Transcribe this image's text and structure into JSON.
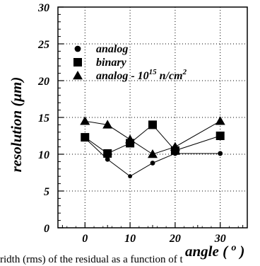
{
  "chart_data": {
    "type": "line",
    "xlabel": "angle ( ",
    "xlabel_unit": "o",
    "xlabel_close": ")",
    "ylabel": "resolution (μm)",
    "xlim": [
      -6,
      36
    ],
    "ylim": [
      0,
      30
    ],
    "x_ticks": [
      0,
      10,
      20,
      30
    ],
    "y_ticks": [
      0,
      5,
      10,
      15,
      20,
      25,
      30
    ],
    "grid": true,
    "legend_position": "top-left",
    "series": [
      {
        "name": "analog",
        "marker": "circle",
        "x": [
          0,
          5,
          10,
          15,
          20,
          30
        ],
        "y": [
          12.2,
          9.3,
          7.0,
          8.8,
          10.1,
          10.1
        ]
      },
      {
        "name": "binary",
        "marker": "square",
        "x": [
          0,
          5,
          10,
          15,
          20,
          30
        ],
        "y": [
          12.3,
          10.1,
          11.5,
          14.0,
          10.5,
          12.5
        ]
      },
      {
        "name": "analog - 10",
        "name_sup": "15",
        "name_tail": " n/cm",
        "name_sup2": "2",
        "marker": "triangle",
        "x": [
          0,
          5,
          10,
          15,
          20,
          30
        ],
        "y": [
          14.5,
          14.0,
          12.0,
          10.0,
          11.0,
          14.5
        ]
      }
    ]
  },
  "caption": "ridth (rms) of the residual as a function of t"
}
